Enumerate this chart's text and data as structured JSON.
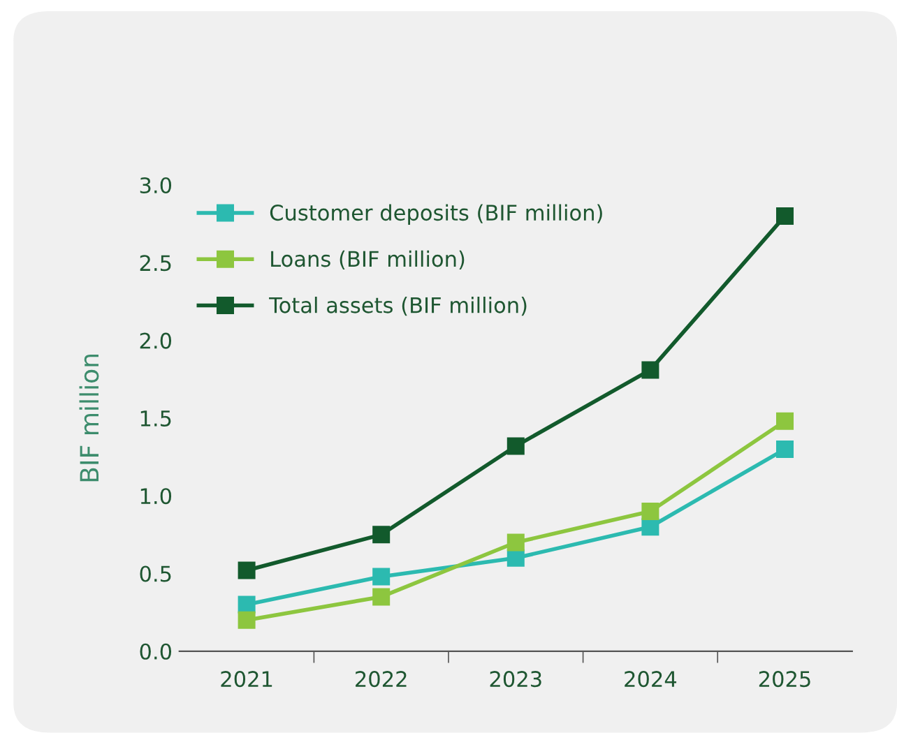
{
  "chart_data": {
    "type": "line",
    "ylabel": "BIF million",
    "categories": [
      "2021",
      "2022",
      "2023",
      "2024",
      "2025"
    ],
    "series": [
      {
        "name": "Customer deposits (BIF million)",
        "color": "#2cbab0",
        "values": [
          0.3,
          0.48,
          0.6,
          0.8,
          1.3
        ]
      },
      {
        "name": "Loans (BIF million)",
        "color": "#8dc63f",
        "values": [
          0.2,
          0.35,
          0.7,
          0.9,
          1.48
        ]
      },
      {
        "name": "Total assets (BIF million)",
        "color": "#125a2c",
        "values": [
          0.52,
          0.75,
          1.32,
          1.81,
          2.8
        ]
      }
    ],
    "ylim": [
      0,
      3.0
    ],
    "yticks": [
      {
        "value": 0,
        "label": "0.0"
      },
      0.5,
      {
        "value": 1,
        "label": "1.0"
      },
      1.5,
      {
        "value": 2,
        "label": "2.0"
      },
      2.5,
      {
        "value": 3,
        "label": "3.0"
      }
    ],
    "grid": false,
    "legend": "top left",
    "marker": "square",
    "line_style": "solid"
  }
}
